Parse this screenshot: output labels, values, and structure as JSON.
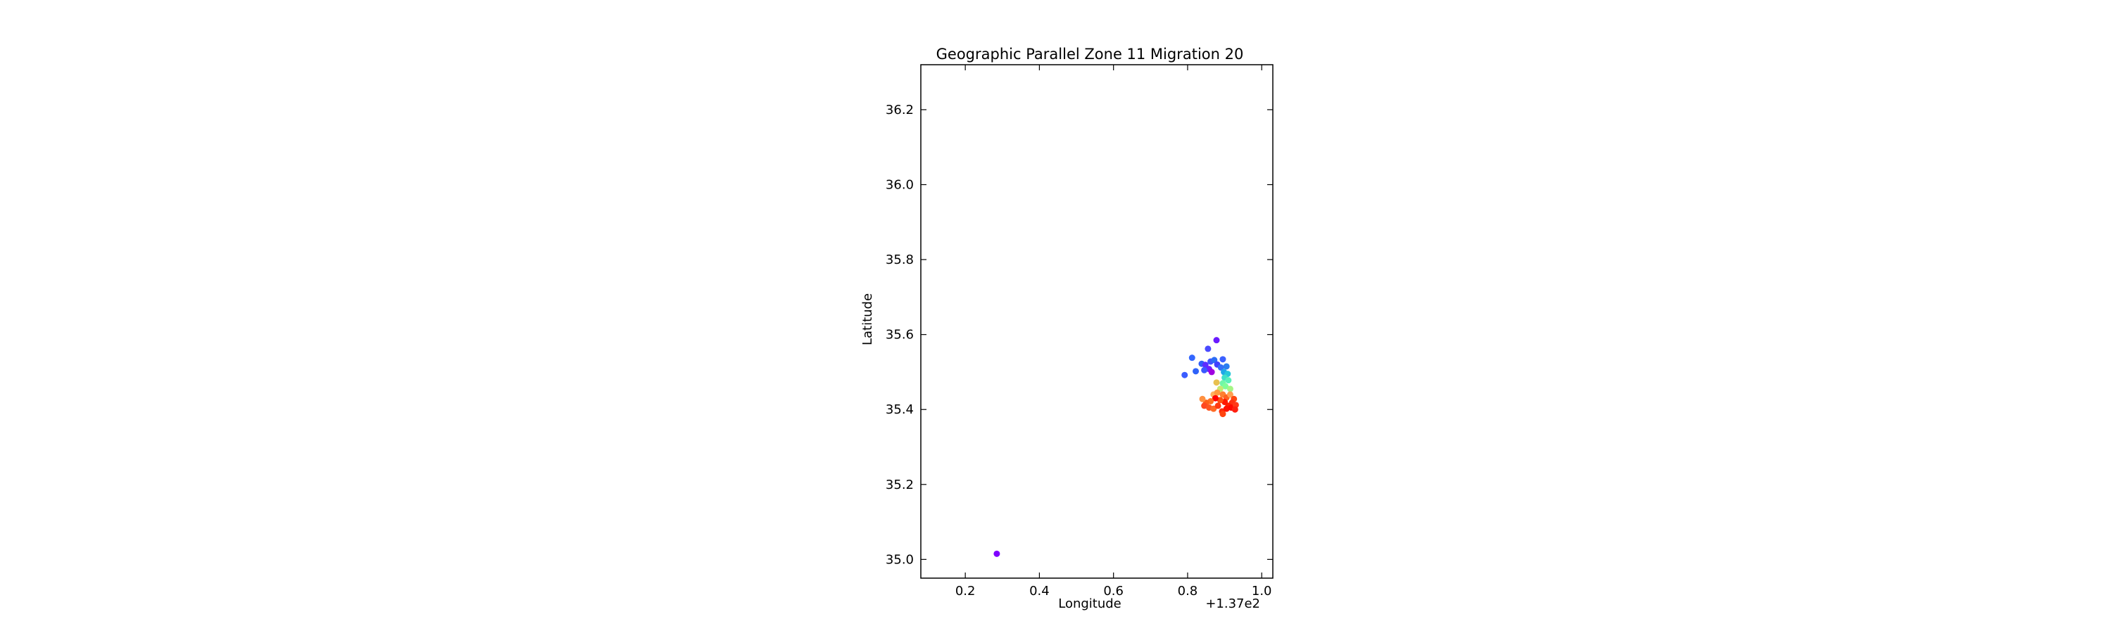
{
  "chart_data": {
    "type": "scatter",
    "title": "Geographic Parallel Zone 11 Migration 20",
    "xlabel": "Longitude",
    "ylabel": "Latitude",
    "x_offset_label": "+1.37e2",
    "xlim": [
      137.08,
      137.03
    ],
    "xlim_note": "",
    "ylim": [
      34.95,
      36.32
    ],
    "x_ticks": [
      137.2,
      137.4,
      137.6,
      137.8,
      138.0
    ],
    "x_tick_labels": [
      "0.2",
      "0.4",
      "0.6",
      "0.8",
      "1.0"
    ],
    "y_ticks": [
      35.0,
      35.2,
      35.4,
      35.6,
      35.8,
      36.0,
      36.2
    ],
    "y_tick_labels": [
      "35.0",
      "35.2",
      "35.4",
      "35.6",
      "35.8",
      "36.0",
      "36.2"
    ],
    "grid": false,
    "colormap": "rainbow",
    "points": [
      {
        "x": 137.285,
        "y": 35.015,
        "color": "#7f00ff"
      },
      {
        "x": 137.878,
        "y": 35.585,
        "color": "#6a1bff"
      },
      {
        "x": 137.855,
        "y": 35.562,
        "color": "#4a4aff"
      },
      {
        "x": 137.812,
        "y": 35.538,
        "color": "#3366ff"
      },
      {
        "x": 137.838,
        "y": 35.522,
        "color": "#2f5ef8"
      },
      {
        "x": 137.848,
        "y": 35.519,
        "color": "#5b2dff"
      },
      {
        "x": 137.862,
        "y": 35.528,
        "color": "#3c55ff"
      },
      {
        "x": 137.872,
        "y": 35.532,
        "color": "#2c6cf5"
      },
      {
        "x": 137.88,
        "y": 35.52,
        "color": "#4040ff"
      },
      {
        "x": 137.895,
        "y": 35.534,
        "color": "#3b60ff"
      },
      {
        "x": 137.905,
        "y": 35.515,
        "color": "#2b7ff0"
      },
      {
        "x": 137.89,
        "y": 35.512,
        "color": "#3470f7"
      },
      {
        "x": 137.858,
        "y": 35.508,
        "color": "#6b20ff"
      },
      {
        "x": 137.865,
        "y": 35.5,
        "color": "#a000e0"
      },
      {
        "x": 137.845,
        "y": 35.505,
        "color": "#3a58ff"
      },
      {
        "x": 137.822,
        "y": 35.502,
        "color": "#2e62f9"
      },
      {
        "x": 137.792,
        "y": 35.492,
        "color": "#3a5cff"
      },
      {
        "x": 137.898,
        "y": 35.5,
        "color": "#1ea6e8"
      },
      {
        "x": 137.908,
        "y": 35.495,
        "color": "#26c6da"
      },
      {
        "x": 137.9,
        "y": 35.485,
        "color": "#3fe0c8"
      },
      {
        "x": 137.91,
        "y": 35.478,
        "color": "#59f0b8"
      },
      {
        "x": 137.895,
        "y": 35.47,
        "color": "#70f7a8"
      },
      {
        "x": 137.902,
        "y": 35.462,
        "color": "#80fd98"
      },
      {
        "x": 137.915,
        "y": 35.455,
        "color": "#a6f585"
      },
      {
        "x": 137.888,
        "y": 35.455,
        "color": "#c8e870"
      },
      {
        "x": 137.878,
        "y": 35.472,
        "color": "#e8c050"
      },
      {
        "x": 137.87,
        "y": 35.44,
        "color": "#ffb060"
      },
      {
        "x": 137.88,
        "y": 35.445,
        "color": "#ff9a40"
      },
      {
        "x": 137.895,
        "y": 35.44,
        "color": "#ff8030"
      },
      {
        "x": 137.905,
        "y": 35.432,
        "color": "#ff6020"
      },
      {
        "x": 137.915,
        "y": 35.44,
        "color": "#ffa050"
      },
      {
        "x": 137.925,
        "y": 35.428,
        "color": "#ff4810"
      },
      {
        "x": 137.92,
        "y": 35.418,
        "color": "#ff3010"
      },
      {
        "x": 137.91,
        "y": 35.41,
        "color": "#ff2000"
      },
      {
        "x": 137.9,
        "y": 35.42,
        "color": "#ff1800"
      },
      {
        "x": 137.888,
        "y": 35.425,
        "color": "#ff5010"
      },
      {
        "x": 137.875,
        "y": 35.43,
        "color": "#ff0000"
      },
      {
        "x": 137.862,
        "y": 35.422,
        "color": "#ff7020"
      },
      {
        "x": 137.85,
        "y": 35.418,
        "color": "#ff6018"
      },
      {
        "x": 137.84,
        "y": 35.428,
        "color": "#ff9040"
      },
      {
        "x": 137.845,
        "y": 35.41,
        "color": "#ff4820"
      },
      {
        "x": 137.858,
        "y": 35.405,
        "color": "#ff5420"
      },
      {
        "x": 137.87,
        "y": 35.402,
        "color": "#ff6a24"
      },
      {
        "x": 137.882,
        "y": 35.41,
        "color": "#ff3a10"
      },
      {
        "x": 137.893,
        "y": 35.395,
        "color": "#ff2a08"
      },
      {
        "x": 137.905,
        "y": 35.402,
        "color": "#ff1000"
      },
      {
        "x": 137.918,
        "y": 35.405,
        "color": "#ff0800"
      },
      {
        "x": 137.93,
        "y": 35.412,
        "color": "#ff3818"
      },
      {
        "x": 137.928,
        "y": 35.4,
        "color": "#ff2010"
      },
      {
        "x": 137.895,
        "y": 35.388,
        "color": "#ff4410"
      }
    ]
  }
}
